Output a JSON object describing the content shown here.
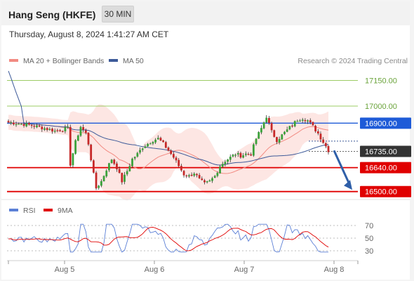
{
  "header": {
    "title": "Hang Seng (HKFE)",
    "timeframe": "30 MIN"
  },
  "timestamp": "Thursday, August 8, 2024 1:41:27 AM CET",
  "legend": {
    "items": [
      {
        "label": "MA 20 + Bollinger Bands",
        "color": "#f28b82"
      },
      {
        "label": "MA 50",
        "color": "#3d5a99"
      }
    ],
    "credit": "Research © 2024 Trading Central"
  },
  "chart_data": [
    {
      "type": "candlestick",
      "x_labels": [
        "Aug 5",
        "Aug 6",
        "Aug 7",
        "Aug 8"
      ],
      "ylim": [
        16470,
        17230
      ],
      "price_levels": [
        {
          "label": "17150.00",
          "value": 17150,
          "color": "#9ccc65",
          "style": "thin"
        },
        {
          "label": "17000.00",
          "value": 17000,
          "color": "#9ccc65",
          "style": "thin"
        },
        {
          "label": "16900.00",
          "value": 16900,
          "color": "#1e5bd8",
          "style": "blue"
        },
        {
          "label": "16735.00",
          "value": 16735,
          "color": "#333333",
          "style": "current"
        },
        {
          "label": "16640.00",
          "value": 16640,
          "color": "#e00000",
          "style": "red"
        },
        {
          "label": "16500.00",
          "value": 16500,
          "color": "#e00000",
          "style": "red"
        }
      ],
      "forecast_arrow": {
        "from": 16740,
        "to": 16510
      },
      "grid": false
    },
    {
      "type": "line",
      "legend": [
        {
          "label": "RSI",
          "color": "#5b7fd6"
        },
        {
          "label": "9MA",
          "color": "#e00000"
        }
      ],
      "y_ticks": [
        70,
        50,
        30
      ],
      "ylim": [
        20,
        80
      ]
    }
  ]
}
